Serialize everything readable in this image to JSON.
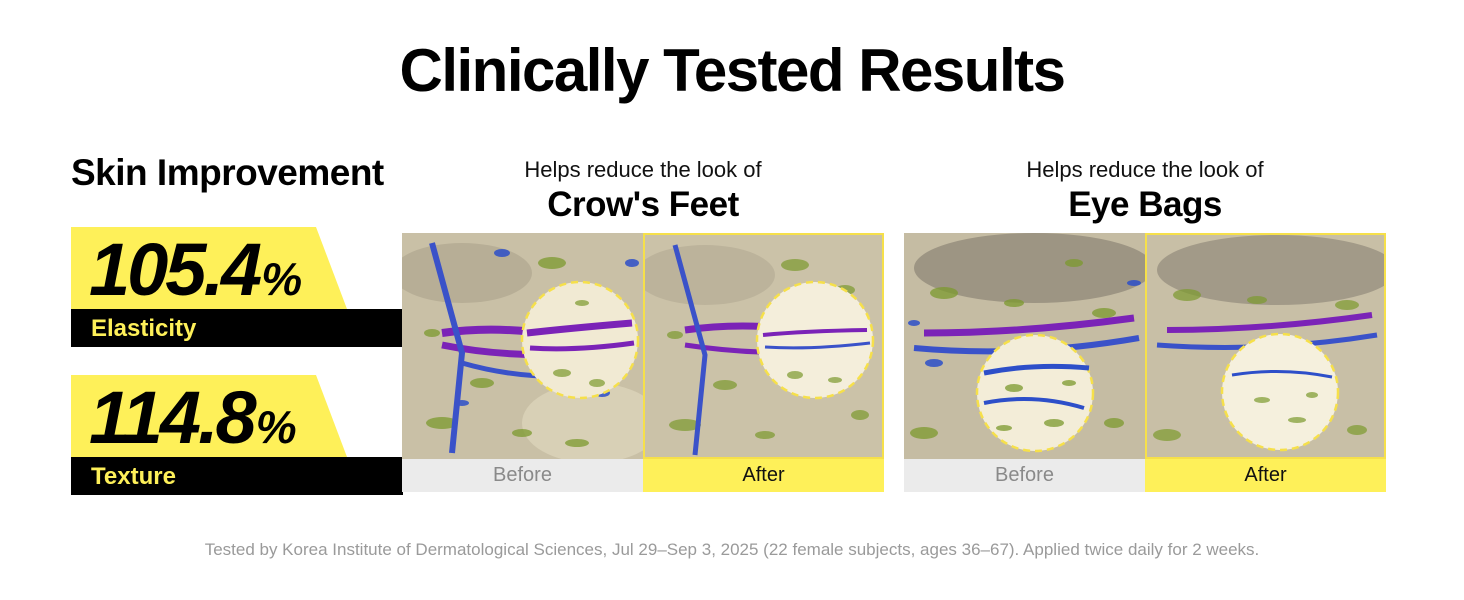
{
  "title": "Clinically Tested Results",
  "skin_improvement": {
    "heading": "Skin Improvement",
    "stats": [
      {
        "value": "105.4",
        "unit": "%",
        "label": "Elasticity"
      },
      {
        "value": "114.8",
        "unit": "%",
        "label": "Texture"
      }
    ]
  },
  "panels": [
    {
      "subtitle": "Helps reduce the look of",
      "headline": "Crow's Feet",
      "before_label": "Before",
      "after_label": "After"
    },
    {
      "subtitle": "Helps reduce the look of",
      "headline": "Eye Bags",
      "before_label": "Before",
      "after_label": "After"
    }
  ],
  "footnote": "Tested by Korea Institute of Dermatological Sciences, Jul 29–Sep 3, 2025 (22 female subjects, ages 36–67). Applied twice daily for 2 weeks.",
  "colors": {
    "accent_yellow": "#fef059",
    "black": "#000000",
    "before_bg": "#ebebeb",
    "skin_base": "#cfc6b0",
    "wrinkle_purple": "#7a22b8",
    "wrinkle_blue": "#2a4fd0",
    "texture_green": "#6a9a2a"
  }
}
